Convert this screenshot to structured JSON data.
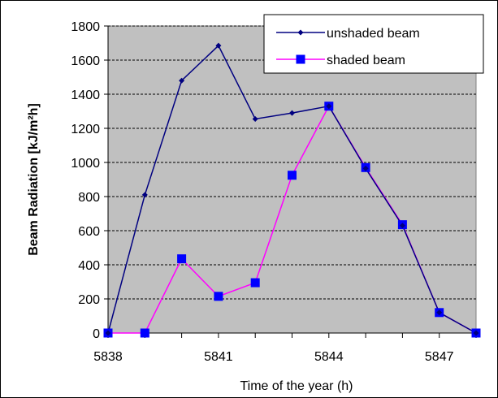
{
  "chart_data": {
    "type": "line",
    "xlabel": "Time of the year (h)",
    "ylabel": "Beam Radiation [kJ/m²h]",
    "xlim": [
      5838,
      5848
    ],
    "ylim": [
      0,
      1800
    ],
    "x_ticks": [
      5838,
      5841,
      5844,
      5847
    ],
    "y_ticks": [
      0,
      200,
      400,
      600,
      800,
      1000,
      1200,
      1400,
      1600,
      1800
    ],
    "grid": true,
    "legend_position": "top-right",
    "x": [
      5838,
      5839,
      5840,
      5841,
      5842,
      5843,
      5844,
      5845,
      5846,
      5847,
      5848
    ],
    "series": [
      {
        "name": "unshaded beam",
        "color": "#000080",
        "marker": "diamond",
        "values": [
          0,
          810,
          1480,
          1685,
          1255,
          1290,
          1330,
          965,
          630,
          120,
          0
        ]
      },
      {
        "name": "shaded beam",
        "color": "#ff00ff",
        "marker_color": "#0000ff",
        "marker": "square",
        "values": [
          0,
          0,
          435,
          215,
          295,
          925,
          1330,
          970,
          635,
          120,
          0
        ]
      }
    ]
  }
}
